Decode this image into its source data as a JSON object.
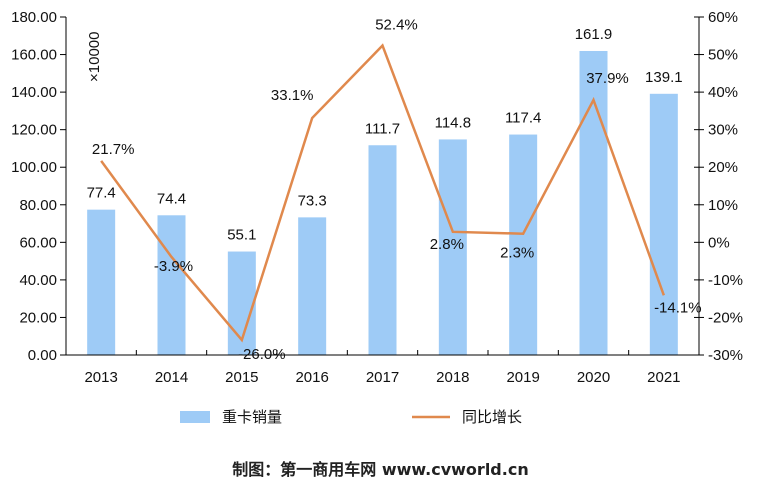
{
  "chart_data": {
    "type": "bar",
    "categories": [
      "2013",
      "2014",
      "2015",
      "2016",
      "2017",
      "2018",
      "2019",
      "2020",
      "2021"
    ],
    "series": [
      {
        "name": "重卡销量",
        "kind": "bar",
        "axis": "left",
        "color": "#9ecbf6",
        "values": [
          77.4,
          74.4,
          55.1,
          73.3,
          111.7,
          114.8,
          117.4,
          161.9,
          139.1
        ],
        "labels": [
          "77.4",
          "74.4",
          "55.1",
          "73.3",
          "111.7",
          "114.8",
          "117.4",
          "161.9",
          "139.1"
        ]
      },
      {
        "name": "同比增长",
        "kind": "line",
        "axis": "right",
        "color": "#e0894d",
        "values": [
          21.7,
          -3.9,
          -26.0,
          33.1,
          52.4,
          2.8,
          2.3,
          37.9,
          -14.1
        ],
        "labels": [
          "21.7%",
          "-3.9%",
          "-26.0%",
          "33.1%",
          "52.4%",
          "2.8%",
          "2.3%",
          "37.9%",
          "-14.1%"
        ]
      }
    ],
    "y_left": {
      "ylim": [
        0,
        180
      ],
      "ticks": [
        "0.00",
        "20.00",
        "40.00",
        "60.00",
        "80.00",
        "100.00",
        "120.00",
        "140.00",
        "160.00",
        "180.00"
      ],
      "unit_label": "×10000"
    },
    "y_right": {
      "ylim": [
        -30,
        60
      ],
      "ticks": [
        "-30%",
        "-20%",
        "-10%",
        "0%",
        "10%",
        "20%",
        "30%",
        "40%",
        "50%",
        "60%"
      ]
    },
    "grid": false,
    "legend_position": "bottom"
  },
  "footer": "制图：第一商用车网 www.cvworld.cn"
}
